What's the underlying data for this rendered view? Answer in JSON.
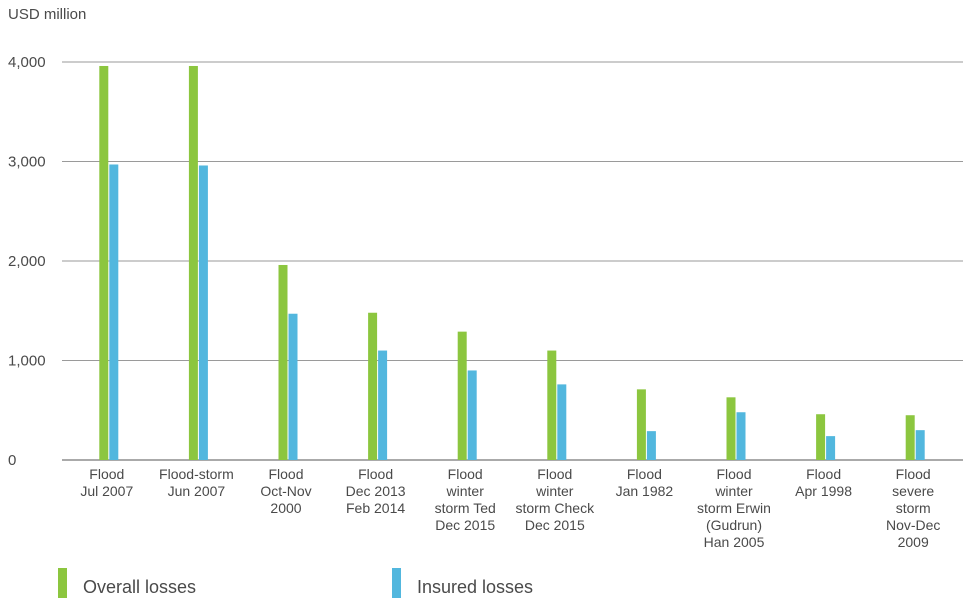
{
  "chart_data": {
    "type": "bar",
    "unit_label": "USD million",
    "categories": [
      [
        "Flood",
        "Jul 2007"
      ],
      [
        "Flood-storm",
        "Jun 2007"
      ],
      [
        "Flood",
        "Oct-Nov",
        "2000"
      ],
      [
        "Flood",
        "Dec 2013",
        "Feb 2014"
      ],
      [
        "Flood",
        "winter",
        "storm Ted",
        "Dec 2015"
      ],
      [
        "Flood",
        "winter",
        "storm Check",
        "Dec 2015"
      ],
      [
        "Flood",
        "Jan 1982"
      ],
      [
        "Flood",
        "winter",
        "storm Erwin",
        "(Gudrun)",
        "Han 2005"
      ],
      [
        "Flood",
        "Apr 1998"
      ],
      [
        "Flood",
        "severe",
        "storm",
        "Nov-Dec",
        "2009"
      ]
    ],
    "series": [
      {
        "name": "Overall losses",
        "color": "#8cc63f",
        "values": [
          3960,
          3960,
          1960,
          1480,
          1290,
          1100,
          710,
          630,
          460,
          450
        ]
      },
      {
        "name": "Insured losses",
        "color": "#52b7de",
        "values": [
          2970,
          2960,
          1470,
          1100,
          900,
          760,
          290,
          480,
          240,
          300
        ]
      }
    ],
    "yticks": [
      0,
      1000,
      2000,
      3000,
      4000
    ],
    "ytick_labels": [
      "0",
      "1,000",
      "2,000",
      "3,000",
      "4,000"
    ],
    "ylim": [
      0,
      4000
    ],
    "grid": true,
    "legend_position": "bottom"
  }
}
